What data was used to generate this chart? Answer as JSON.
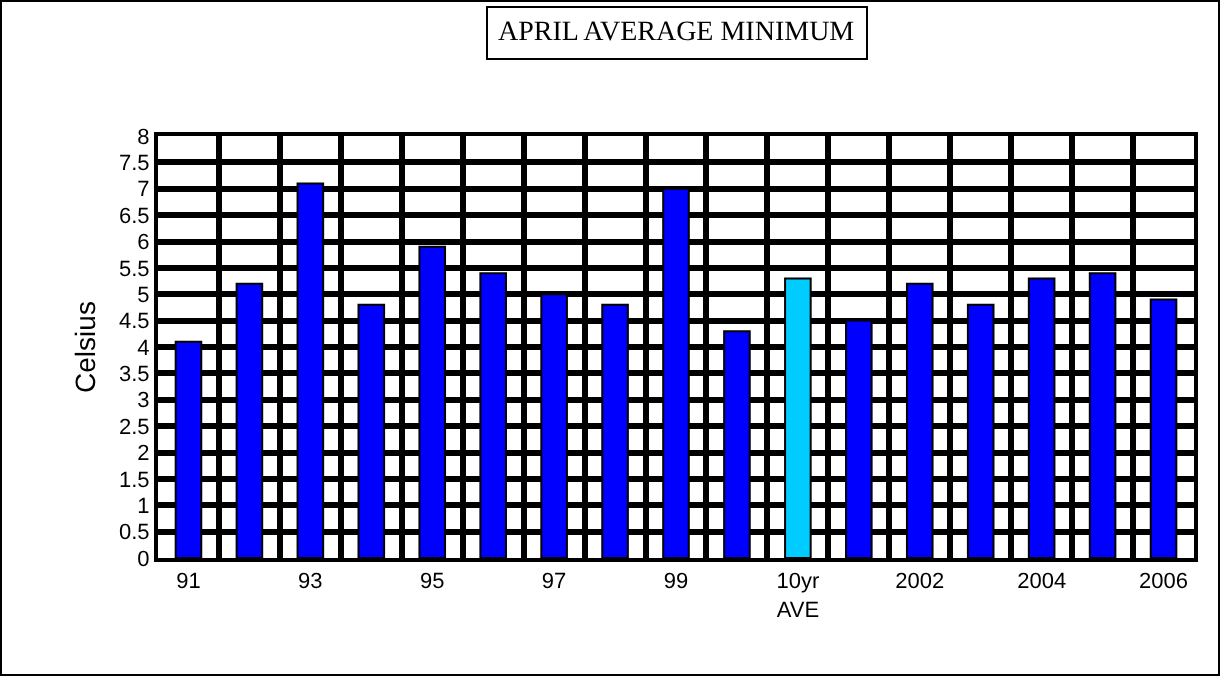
{
  "chart_data": {
    "type": "bar",
    "title": "APRIL AVERAGE MINIMUM",
    "ylabel": "Celsius",
    "categories": [
      "91",
      null,
      "93",
      null,
      "95",
      null,
      "97",
      null,
      "99",
      null,
      "10yr AVE",
      null,
      "2002",
      null,
      "2004",
      null,
      "2006"
    ],
    "values": [
      4.1,
      5.2,
      7.1,
      4.8,
      5.9,
      5.4,
      5.0,
      4.8,
      7.0,
      4.3,
      5.3,
      4.5,
      5.2,
      4.8,
      5.3,
      5.4,
      4.9
    ],
    "colors": [
      "#0000ff",
      "#0000ff",
      "#0000ff",
      "#0000ff",
      "#0000ff",
      "#0000ff",
      "#0000ff",
      "#0000ff",
      "#0000ff",
      "#0000ff",
      "#00ccff",
      "#0000ff",
      "#0000ff",
      "#0000ff",
      "#0000ff",
      "#0000ff",
      "#0000ff"
    ],
    "ylim": [
      0,
      8
    ],
    "yticks": [
      0,
      0.5,
      1,
      1.5,
      2,
      2.5,
      3,
      3.5,
      4,
      4.5,
      5,
      5.5,
      6,
      6.5,
      7,
      7.5,
      8
    ],
    "grid": true,
    "legend": false
  }
}
